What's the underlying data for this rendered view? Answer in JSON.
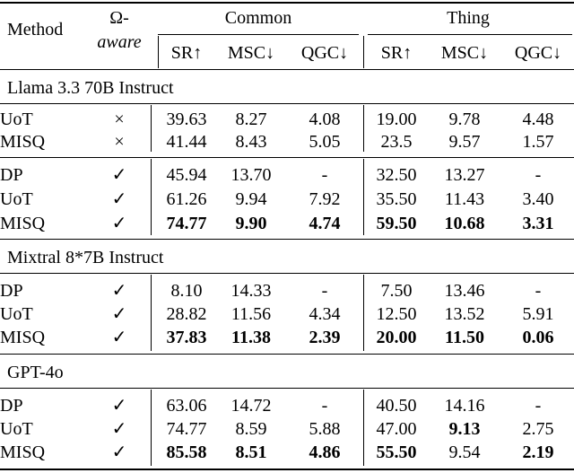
{
  "header": {
    "method": "Method",
    "omega_top": "Ω-",
    "omega_bottom": "aware",
    "group_common": "Common",
    "group_thing": "Thing",
    "sub": [
      "SR↑",
      "MSC↓",
      "QGC↓",
      "SR↑",
      "MSC↓",
      "QGC↓"
    ]
  },
  "sections": [
    {
      "title": "Llama 3.3 70B Instruct",
      "blocks": [
        {
          "rows": [
            {
              "method": "UoT",
              "aware": "×",
              "values": [
                "39.63",
                "8.27",
                "4.08",
                "19.00",
                "9.78",
                "4.48"
              ],
              "bold": [
                false,
                false,
                false,
                false,
                false,
                false
              ]
            },
            {
              "method": "MISQ",
              "aware": "×",
              "values": [
                "41.44",
                "8.43",
                "5.05",
                "23.5",
                "9.57",
                "1.57"
              ],
              "bold": [
                false,
                false,
                false,
                false,
                false,
                false
              ]
            }
          ]
        },
        {
          "rows": [
            {
              "method": "DP",
              "aware": "✓",
              "values": [
                "45.94",
                "13.70",
                "-",
                "32.50",
                "13.27",
                "-"
              ],
              "bold": [
                false,
                false,
                false,
                false,
                false,
                false
              ]
            },
            {
              "method": "UoT",
              "aware": "✓",
              "values": [
                "61.26",
                "9.94",
                "7.92",
                "35.50",
                "11.43",
                "3.40"
              ],
              "bold": [
                false,
                false,
                false,
                false,
                false,
                false
              ]
            },
            {
              "method": "MISQ",
              "aware": "✓",
              "values": [
                "74.77",
                "9.90",
                "4.74",
                "59.50",
                "10.68",
                "3.31"
              ],
              "bold": [
                true,
                true,
                true,
                true,
                true,
                true
              ]
            }
          ]
        }
      ]
    },
    {
      "title": "Mixtral 8*7B Instruct",
      "blocks": [
        {
          "rows": [
            {
              "method": "DP",
              "aware": "✓",
              "values": [
                "8.10",
                "14.33",
                "-",
                "7.50",
                "13.46",
                "-"
              ],
              "bold": [
                false,
                false,
                false,
                false,
                false,
                false
              ]
            },
            {
              "method": "UoT",
              "aware": "✓",
              "values": [
                "28.82",
                "11.56",
                "4.34",
                "12.50",
                "13.52",
                "5.91"
              ],
              "bold": [
                false,
                false,
                false,
                false,
                false,
                false
              ]
            },
            {
              "method": "MISQ",
              "aware": "✓",
              "values": [
                "37.83",
                "11.38",
                "2.39",
                "20.00",
                "11.50",
                "0.06"
              ],
              "bold": [
                true,
                true,
                true,
                true,
                true,
                true
              ]
            }
          ]
        }
      ]
    },
    {
      "title": "GPT-4o",
      "blocks": [
        {
          "rows": [
            {
              "method": "DP",
              "aware": "✓",
              "values": [
                "63.06",
                "14.72",
                "-",
                "40.50",
                "14.16",
                "-"
              ],
              "bold": [
                false,
                false,
                false,
                false,
                false,
                false
              ]
            },
            {
              "method": "UoT",
              "aware": "✓",
              "values": [
                "74.77",
                "8.59",
                "5.88",
                "47.00",
                "9.13",
                "2.75"
              ],
              "bold": [
                false,
                false,
                false,
                false,
                true,
                false
              ]
            },
            {
              "method": "MISQ",
              "aware": "✓",
              "values": [
                "85.58",
                "8.51",
                "4.86",
                "55.50",
                "9.54",
                "2.19"
              ],
              "bold": [
                true,
                true,
                true,
                true,
                false,
                true
              ]
            }
          ]
        }
      ]
    }
  ]
}
